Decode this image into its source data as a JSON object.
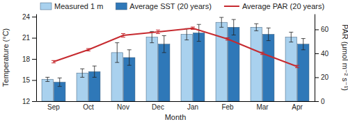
{
  "chart_data": {
    "type": "bar",
    "categories": [
      "Sep",
      "Oct",
      "Nov",
      "Dec",
      "Jan",
      "Feb",
      "Mar",
      "Apr"
    ],
    "x_label": "Month",
    "y_label": "Temperature (°C)",
    "y2_label": "PAR (μmol m⁻² s⁻¹)",
    "ylim": [
      12,
      24.4
    ],
    "yticks": [
      12,
      15,
      18,
      21,
      24
    ],
    "y2lim": [
      0,
      73
    ],
    "y2ticks": [
      0,
      20,
      40,
      60
    ],
    "legend": "top",
    "series": [
      {
        "name": "Measured 1 m",
        "type": "bar",
        "color": "#a9d1ee",
        "values": [
          15.1,
          16.0,
          18.9,
          21.1,
          21.5,
          23.2,
          22.5,
          21.1
        ],
        "errors": [
          0.3,
          0.6,
          1.4,
          0.8,
          0.8,
          0.7,
          0.5,
          0.7
        ]
      },
      {
        "name": "Average SST (20 years)",
        "type": "bar",
        "color": "#2f78b8",
        "values": [
          14.7,
          16.2,
          18.2,
          20.1,
          21.7,
          22.5,
          21.5,
          20.1
        ],
        "errors": [
          0.6,
          0.8,
          1.1,
          1.2,
          1.2,
          1.1,
          0.9,
          0.8
        ]
      },
      {
        "name": "Average PAR (20 years)",
        "type": "line",
        "axis": "y2",
        "color": "#c62a2f",
        "line_style": "solid",
        "values": [
          33,
          43,
          55,
          58,
          61,
          52,
          40,
          29
        ],
        "errors": [
          1,
          1,
          1.5,
          1.5,
          1,
          1,
          1,
          1
        ]
      }
    ]
  }
}
